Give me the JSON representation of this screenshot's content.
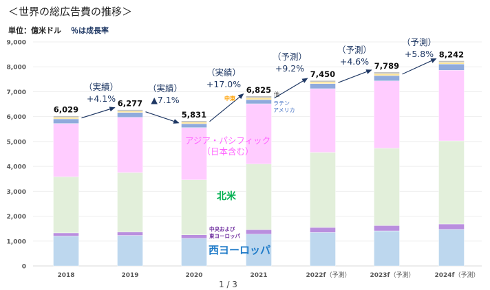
{
  "header": {
    "title": "＜世界の総広告費の推移＞",
    "unit": "単位：億米ドル",
    "unit_note": "％は成長率"
  },
  "footer": {
    "page": "1 / 3"
  },
  "chart_data": {
    "type": "bar",
    "stacked": true,
    "title": "＜世界の総広告費の推移＞",
    "ylabel": "単位：億米ドル",
    "ylim": [
      0,
      9000
    ],
    "yticks": [
      "0",
      "1,000",
      "2,000",
      "3,000",
      "4,000",
      "5,000",
      "6,000",
      "7,000",
      "8,000",
      "9,000"
    ],
    "grid": true,
    "categories": [
      "2018",
      "2019",
      "2020",
      "2021",
      "2022f（予測）",
      "2023f（予測）",
      "2024f（予測）"
    ],
    "category_labels": [
      {
        "year": "2018",
        "note": ""
      },
      {
        "year": "2019",
        "note": ""
      },
      {
        "year": "2020",
        "note": ""
      },
      {
        "year": "2021",
        "note": ""
      },
      {
        "year": "2022f",
        "note": "（予測）"
      },
      {
        "year": "2023f",
        "note": "（予測）"
      },
      {
        "year": "2024f",
        "note": "（予測）"
      }
    ],
    "totals": [
      6029,
      6277,
      5831,
      6825,
      7450,
      7789,
      8242
    ],
    "total_labels": [
      "6,029",
      "6,277",
      "5,831",
      "6,825",
      "7,450",
      "7,789",
      "8,242"
    ],
    "series": [
      {
        "name": "西ヨーロッパ",
        "color": "#bdd7ee",
        "label_color": "#1f7bc8",
        "values": [
          1200,
          1226,
          1113,
          1279,
          1344,
          1408,
          1472
        ]
      },
      {
        "name": "中央および東ヨーロッパ",
        "label_lines": [
          "中央および",
          "東ヨーロッパ"
        ],
        "color": "#b98ede",
        "label_color": "#7030a0",
        "values": [
          127,
          138,
          138,
          175,
          202,
          212,
          212
        ]
      },
      {
        "name": "北米",
        "color": "#e2efda",
        "label_color": "#00b050",
        "values": [
          2258,
          2387,
          2209,
          2641,
          3018,
          3109,
          3341
        ]
      },
      {
        "name": "アジア・パシフィック（日本含む）",
        "label_lines": [
          "アジア・パシフィック",
          "（日本含む）"
        ],
        "color": "#ffccff",
        "label_color": "#ff66ff",
        "values": [
          2139,
          2221,
          2098,
          2421,
          2559,
          2707,
          2835
        ]
      },
      {
        "name": "ラテンアメリカ",
        "label_lines": [
          "ラテン",
          "アメリカ"
        ],
        "color": "#8faadc",
        "label_color": "#4472c4",
        "values": [
          184,
          194,
          157,
          165,
          202,
          211,
          248
        ]
      },
      {
        "name": "中東",
        "color": "#ffe699",
        "label_color": "#ffa000",
        "values": [
          60,
          55,
          60,
          75,
          70,
          80,
          74
        ]
      },
      {
        "name": "他",
        "color": "#bfbfbf",
        "label_color": "#444444",
        "values": [
          61,
          56,
          56,
          69,
          55,
          62,
          60
        ]
      }
    ],
    "growth": [
      {
        "kind": "（実績）",
        "rate": "+4.1%"
      },
      {
        "kind": "（実績）",
        "rate": "▲7.1%"
      },
      {
        "kind": "（実績）",
        "rate": "+17.0%"
      },
      {
        "kind": "（予測）",
        "rate": "+9.2%"
      },
      {
        "kind": "（予測）",
        "rate": "+4.6%"
      },
      {
        "kind": "（予測）",
        "rate": "+5.8%"
      }
    ],
    "colors": {
      "growth": "#1f3864",
      "axis_text": "#595959",
      "grid": "#eeeeee"
    }
  }
}
